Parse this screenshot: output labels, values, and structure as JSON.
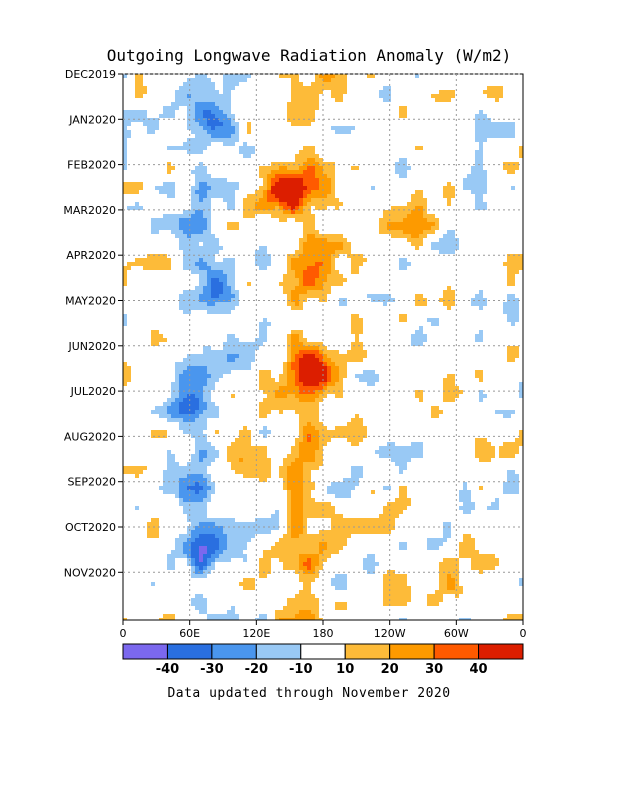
{
  "chart_data": {
    "type": "heatmap",
    "title": "Outgoing Longwave Radiation Anomaly (W/m2)",
    "y_ticks": [
      "DEC2019",
      "JAN2020",
      "FEB2020",
      "MAR2020",
      "APR2020",
      "MAY2020",
      "JUN2020",
      "JUL2020",
      "AUG2020",
      "SEP2020",
      "OCT2020",
      "NOV2020"
    ],
    "x_ticks": [
      "0",
      "60E",
      "120E",
      "180",
      "120W",
      "60W",
      "0"
    ],
    "colorbar": {
      "ticks": [
        "-40",
        "-30",
        "-20",
        "-10",
        "10",
        "20",
        "30",
        "40"
      ],
      "colors": [
        "#7b68ee",
        "#2a6fe0",
        "#4a96ee",
        "#99c9f5",
        "#ffffff",
        "#fdbb39",
        "#fd9a00",
        "#ff5a00",
        "#dc1e00"
      ]
    },
    "grid": true,
    "features": [
      {
        "lon": 145,
        "t": 2.6,
        "value": 45
      },
      {
        "lon": 60,
        "t": 7.3,
        "value": -40
      },
      {
        "lon": 105,
        "t": 8.4,
        "value": 30
      },
      {
        "lon": 170,
        "t": 6.6,
        "value": 35
      },
      {
        "lon": 85,
        "t": 1.2,
        "value": -30
      },
      {
        "lon": 85,
        "t": 4.7,
        "value": -25
      },
      {
        "lon": 70,
        "t": 10.5,
        "value": -25
      },
      {
        "lon": 260,
        "t": 3.5,
        "value": 15
      },
      {
        "lon": 300,
        "t": 11.5,
        "value": 20
      },
      {
        "lon": 320,
        "t": 2.2,
        "value": -20
      }
    ]
  },
  "footer": "Data updated through November 2020"
}
